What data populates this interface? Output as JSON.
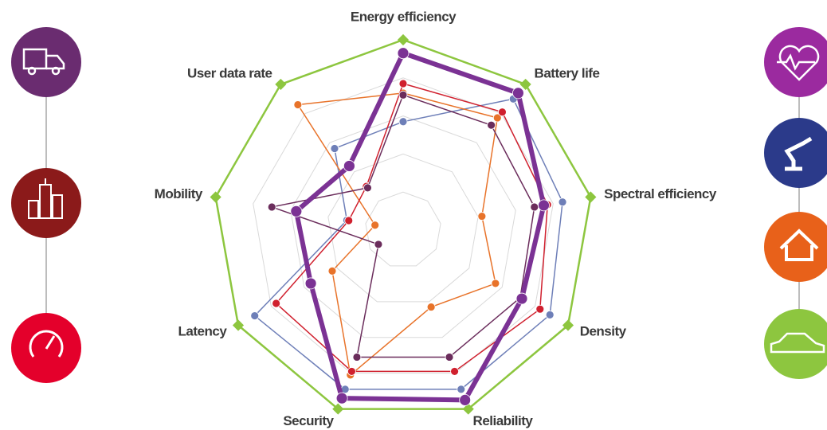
{
  "chart_data": {
    "type": "radar",
    "categories": [
      "Energy efficiency",
      "Battery life",
      "Spectral efficiency",
      "Density",
      "Reliability",
      "Security",
      "Latency",
      "Mobility",
      "User data rate"
    ],
    "rlim": [
      0,
      10
    ],
    "rticks": [
      2,
      4,
      6,
      8
    ],
    "grid": true,
    "series": [
      {
        "color": "#8dc63f",
        "values": [
          10,
          10,
          10,
          10,
          10,
          10,
          10,
          10,
          10
        ]
      },
      {
        "color": "#6e7fb8",
        "values": [
          5.7,
          9.0,
          8.5,
          8.9,
          8.9,
          8.9,
          9.0,
          3.0,
          5.6
        ]
      },
      {
        "color": "#e8732a",
        "values": [
          7.2,
          7.7,
          4.2,
          5.6,
          4.3,
          8.1,
          4.3,
          1.5,
          8.6
        ]
      },
      {
        "color": "#d0202e",
        "values": [
          7.7,
          8.1,
          7.7,
          8.3,
          7.9,
          7.9,
          7.7,
          2.9,
          3.0
        ]
      },
      {
        "color": "#6b2d5c",
        "values": [
          7.1,
          7.2,
          7.0,
          7.1,
          7.1,
          7.1,
          1.5,
          7.0,
          2.9
        ]
      },
      {
        "color": "#7b3294",
        "values": [
          9.3,
          9.4,
          7.5,
          7.2,
          9.5,
          9.4,
          5.6,
          5.7,
          4.4
        ]
      }
    ]
  }
}
